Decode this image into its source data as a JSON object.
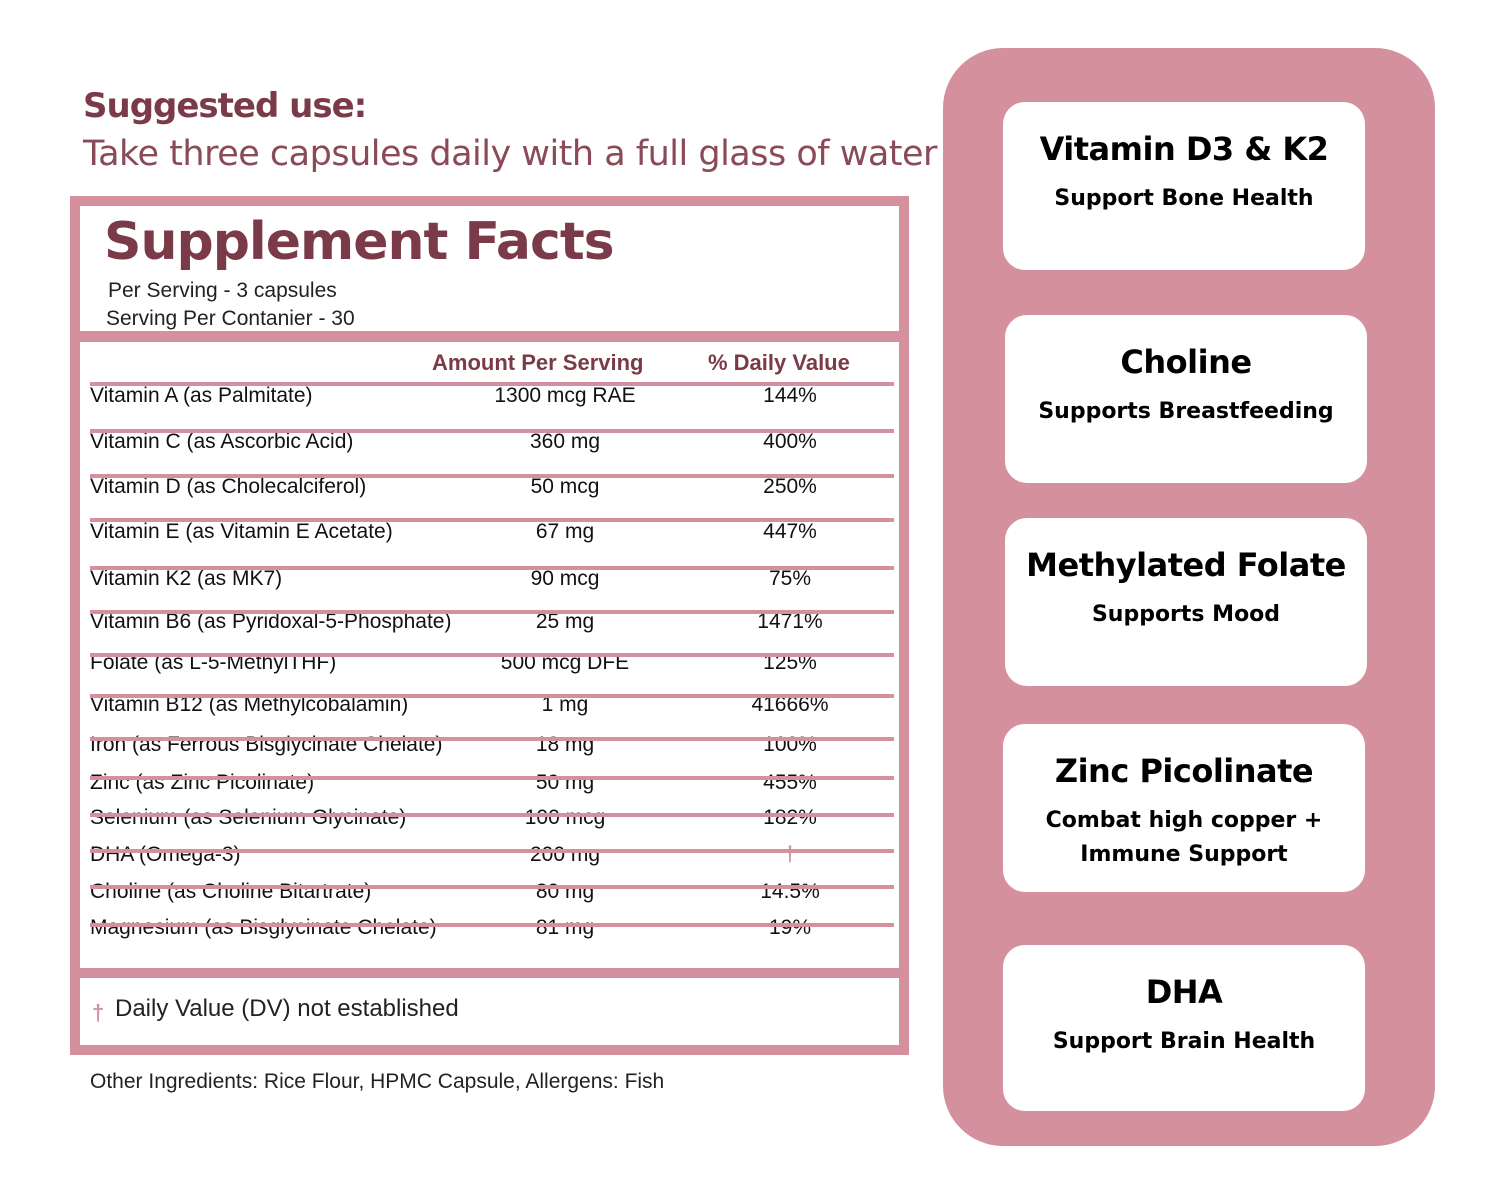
{
  "suggested_use": {
    "title": "Suggested use:",
    "text": "Take three capsules daily with a full glass of water"
  },
  "facts": {
    "title": "Supplement Facts",
    "per_serving": "Per Serving  - 3  capsules",
    "servings": "Serving Per Contanier -  30",
    "col_amount": "Amount Per Serving",
    "col_dv": "% Daily Value",
    "rows": [
      {
        "name": "Vitamin A (as Palmitate)",
        "amount": "1300 mcg RAE",
        "dv": "144%"
      },
      {
        "name": "Vitamin C (as Ascorbic Acid)",
        "amount": "360 mg",
        "dv": "400%"
      },
      {
        "name": "Vitamin D (as Cholecalciferol)",
        "amount": "50 mcg",
        "dv": "250%"
      },
      {
        "name": "Vitamin E (as Vitamin E Acetate)",
        "amount": "67 mg",
        "dv": "447%"
      },
      {
        "name": "Vitamin K2 (as MK7)",
        "amount": "90 mcg",
        "dv": "75%"
      },
      {
        "name": "Vitamin B6 (as Pyridoxal-5-Phosphate)",
        "amount": "25 mg",
        "dv": "1471%"
      },
      {
        "name": "Folate (as L-5-MethylTHF)",
        "amount": "500 mcg DFE",
        "dv": "125%"
      },
      {
        "name": "Vitamin B12 (as Methylcobalamin)",
        "amount": "1 mg",
        "dv": "41666%"
      },
      {
        "name": "Iron (as Ferrous Bisglycinate Chelate)",
        "amount": "18 mg",
        "dv": "100%"
      },
      {
        "name": "Zinc (as Zinc Picolinate)",
        "amount": "50 mg",
        "dv": "455%"
      },
      {
        "name": "Selenium (as Selenium Glycinate)",
        "amount": "100 mcg",
        "dv": "182%"
      },
      {
        "name": "DHA (Omega-3)",
        "amount": "200 mg",
        "dv": "†"
      },
      {
        "name": "Choline (as Choline Bitartrate)",
        "amount": "80 mg",
        "dv": "14.5%"
      },
      {
        "name": "Magnesium (as Bisglycinate Chelate)",
        "amount": "81 mg",
        "dv": "19%"
      }
    ],
    "footnote_symbol": "†",
    "footnote": "Daily Value (DV) not established"
  },
  "other_ingredients": "Other Ingredients: Rice Flour, HPMC Capsule, Allergens: Fish",
  "benefits": [
    {
      "title": "Vitamin D3 & K2",
      "subtitle": "Support Bone Health"
    },
    {
      "title": "Choline",
      "subtitle": "Supports Breastfeeding"
    },
    {
      "title": "Methylated Folate",
      "subtitle": "Supports Mood"
    },
    {
      "title": "Zinc Picolinate",
      "subtitle": "Combat high copper + Immune Support"
    },
    {
      "title": "DHA",
      "subtitle": "Support Brain Health"
    }
  ],
  "colors": {
    "accent": "#d4909c",
    "heading": "#7a3a48"
  }
}
